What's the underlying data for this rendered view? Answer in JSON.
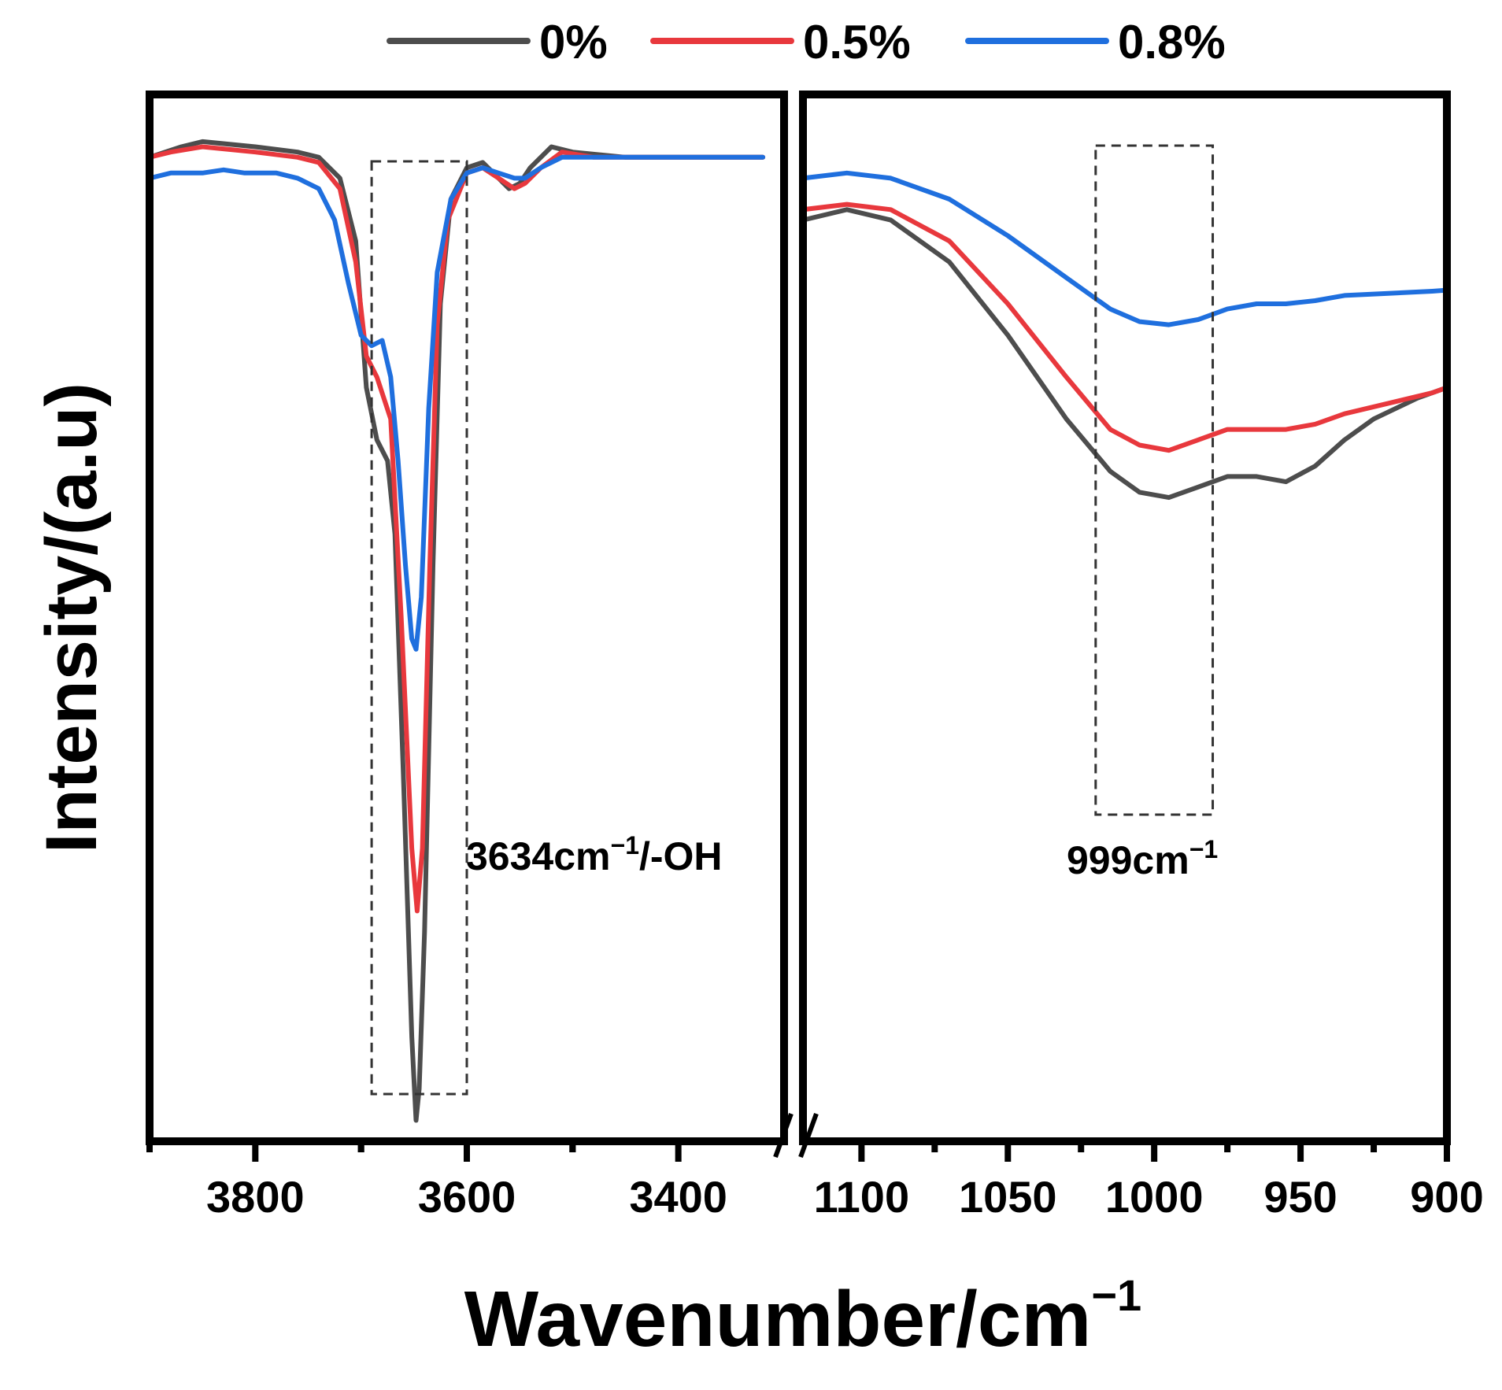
{
  "chart_data": {
    "type": "line",
    "title": "",
    "xlabel": "Wavenumber/cm",
    "xlabel_sup": "−1",
    "ylabel": "Intensity/(a.u)",
    "grid": false,
    "legend_position": "top-center",
    "broken_axis": true,
    "panels": [
      {
        "name": "left",
        "xlim": [
          3900,
          3300
        ],
        "ticks": [
          3800,
          3600,
          3400
        ],
        "tick_labels": [
          "3800",
          "3600",
          "3400"
        ],
        "annotation": {
          "text": "3634cm",
          "sup": "−1",
          "suffix": "/-OH",
          "box_x": [
            3690,
            3600
          ]
        }
      },
      {
        "name": "right",
        "xlim": [
          1120,
          900
        ],
        "ticks": [
          1100,
          1050,
          1000,
          950,
          900
        ],
        "tick_labels": [
          "1100",
          "1050",
          "1000",
          "950",
          "900"
        ],
        "annotation": {
          "text": "999cm",
          "sup": "−1",
          "suffix": "",
          "box_x": [
            1020,
            980
          ]
        }
      }
    ],
    "ylim": [
      0,
      100
    ],
    "series": [
      {
        "name": "0%",
        "color": "#4d4d4d",
        "left": [
          [
            3900,
            94
          ],
          [
            3870,
            95
          ],
          [
            3850,
            95.5
          ],
          [
            3800,
            95
          ],
          [
            3760,
            94.5
          ],
          [
            3740,
            94
          ],
          [
            3720,
            92
          ],
          [
            3705,
            86
          ],
          [
            3695,
            72
          ],
          [
            3685,
            67
          ],
          [
            3675,
            65
          ],
          [
            3668,
            58
          ],
          [
            3660,
            35
          ],
          [
            3652,
            10
          ],
          [
            3648,
            2
          ],
          [
            3645,
            5
          ],
          [
            3640,
            20
          ],
          [
            3632,
            55
          ],
          [
            3625,
            80
          ],
          [
            3615,
            90
          ],
          [
            3600,
            93
          ],
          [
            3585,
            93.5
          ],
          [
            3570,
            92
          ],
          [
            3560,
            91
          ],
          [
            3550,
            91.5
          ],
          [
            3540,
            93
          ],
          [
            3520,
            95
          ],
          [
            3500,
            94.5
          ],
          [
            3450,
            94
          ],
          [
            3400,
            94
          ],
          [
            3360,
            94
          ],
          [
            3320,
            94
          ]
        ],
        "right": [
          [
            1120,
            88
          ],
          [
            1105,
            89
          ],
          [
            1090,
            88
          ],
          [
            1070,
            84
          ],
          [
            1050,
            77
          ],
          [
            1030,
            69
          ],
          [
            1015,
            64
          ],
          [
            1005,
            62
          ],
          [
            995,
            61.5
          ],
          [
            985,
            62.5
          ],
          [
            975,
            63.5
          ],
          [
            965,
            63.5
          ],
          [
            955,
            63
          ],
          [
            945,
            64.5
          ],
          [
            935,
            67
          ],
          [
            925,
            69
          ],
          [
            910,
            71
          ],
          [
            900,
            72
          ]
        ]
      },
      {
        "name": "0.5%",
        "color": "#e8383d",
        "left": [
          [
            3900,
            94
          ],
          [
            3880,
            94.5
          ],
          [
            3850,
            95
          ],
          [
            3800,
            94.5
          ],
          [
            3760,
            94
          ],
          [
            3740,
            93.5
          ],
          [
            3720,
            91
          ],
          [
            3705,
            84
          ],
          [
            3695,
            75
          ],
          [
            3685,
            73
          ],
          [
            3672,
            69
          ],
          [
            3662,
            50
          ],
          [
            3652,
            28
          ],
          [
            3647,
            22
          ],
          [
            3642,
            28
          ],
          [
            3635,
            55
          ],
          [
            3628,
            78
          ],
          [
            3618,
            88
          ],
          [
            3600,
            92.5
          ],
          [
            3585,
            93
          ],
          [
            3570,
            92
          ],
          [
            3555,
            91
          ],
          [
            3545,
            91.5
          ],
          [
            3530,
            93
          ],
          [
            3510,
            94.5
          ],
          [
            3480,
            94
          ],
          [
            3450,
            94
          ],
          [
            3400,
            94
          ],
          [
            3360,
            94
          ],
          [
            3320,
            94
          ]
        ],
        "right": [
          [
            1120,
            89
          ],
          [
            1105,
            89.5
          ],
          [
            1090,
            89
          ],
          [
            1070,
            86
          ],
          [
            1050,
            80
          ],
          [
            1030,
            73
          ],
          [
            1015,
            68
          ],
          [
            1005,
            66.5
          ],
          [
            995,
            66
          ],
          [
            985,
            67
          ],
          [
            975,
            68
          ],
          [
            965,
            68
          ],
          [
            955,
            68
          ],
          [
            945,
            68.5
          ],
          [
            935,
            69.5
          ],
          [
            920,
            70.5
          ],
          [
            905,
            71.5
          ],
          [
            900,
            72
          ]
        ]
      },
      {
        "name": "0.8%",
        "color": "#1f6fde",
        "left": [
          [
            3900,
            92
          ],
          [
            3880,
            92.5
          ],
          [
            3850,
            92.5
          ],
          [
            3830,
            92.8
          ],
          [
            3810,
            92.5
          ],
          [
            3780,
            92.5
          ],
          [
            3760,
            92
          ],
          [
            3740,
            91
          ],
          [
            3725,
            88
          ],
          [
            3712,
            82
          ],
          [
            3700,
            77
          ],
          [
            3690,
            76
          ],
          [
            3680,
            76.5
          ],
          [
            3672,
            73
          ],
          [
            3665,
            65
          ],
          [
            3658,
            55
          ],
          [
            3652,
            48
          ],
          [
            3648,
            47
          ],
          [
            3643,
            52
          ],
          [
            3636,
            70
          ],
          [
            3628,
            83
          ],
          [
            3615,
            90
          ],
          [
            3600,
            92.5
          ],
          [
            3585,
            93
          ],
          [
            3570,
            92.5
          ],
          [
            3555,
            92
          ],
          [
            3545,
            92
          ],
          [
            3530,
            93
          ],
          [
            3510,
            94
          ],
          [
            3480,
            94
          ],
          [
            3450,
            94
          ],
          [
            3400,
            94
          ],
          [
            3360,
            94
          ],
          [
            3320,
            94
          ]
        ],
        "right": [
          [
            1120,
            92
          ],
          [
            1105,
            92.5
          ],
          [
            1090,
            92
          ],
          [
            1070,
            90
          ],
          [
            1050,
            86.5
          ],
          [
            1030,
            82.5
          ],
          [
            1015,
            79.5
          ],
          [
            1005,
            78.3
          ],
          [
            995,
            78
          ],
          [
            985,
            78.5
          ],
          [
            975,
            79.5
          ],
          [
            965,
            80
          ],
          [
            955,
            80
          ],
          [
            945,
            80.3
          ],
          [
            935,
            80.8
          ],
          [
            920,
            81
          ],
          [
            905,
            81.2
          ],
          [
            900,
            81.3
          ]
        ]
      }
    ]
  }
}
